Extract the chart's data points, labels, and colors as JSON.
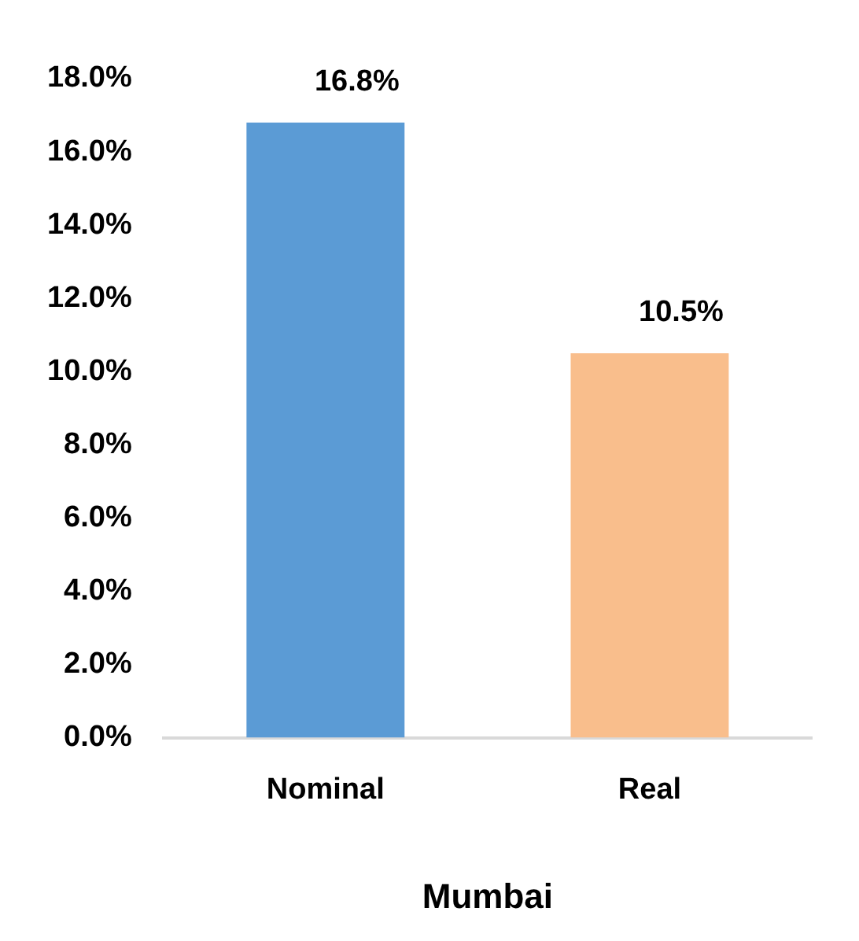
{
  "chart_data": {
    "type": "bar",
    "xlabel": "Mumbai",
    "categories": [
      "Nominal",
      "Real"
    ],
    "values": [
      16.8,
      10.5
    ],
    "colors": [
      "#5b9bd5",
      "#f9be8c"
    ],
    "value_labels": [
      "16.8%",
      "10.5%"
    ],
    "ylim": [
      0,
      18
    ],
    "yticks": [
      {
        "value": 0,
        "label": "0.0%"
      },
      {
        "value": 2,
        "label": "2.0%"
      },
      {
        "value": 4,
        "label": "4.0%"
      },
      {
        "value": 6,
        "label": "6.0%"
      },
      {
        "value": 8,
        "label": "8.0%"
      },
      {
        "value": 10,
        "label": "10.0%"
      },
      {
        "value": 12,
        "label": "12.0%"
      },
      {
        "value": 14,
        "label": "14.0%"
      },
      {
        "value": 16,
        "label": "16.0%"
      },
      {
        "value": 18,
        "label": "18.0%"
      }
    ],
    "grid": false,
    "legend": false
  }
}
